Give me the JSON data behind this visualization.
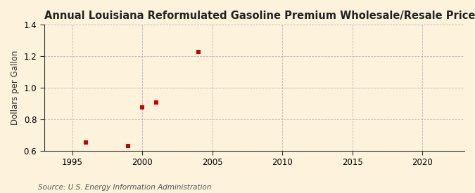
{
  "title": "Annual Louisiana Reformulated Gasoline Premium Wholesale/Resale Price by All Sellers",
  "ylabel": "Dollars per Gallon",
  "source": "Source: U.S. Energy Information Administration",
  "x_data": [
    1996,
    1999,
    2000,
    2001,
    2004
  ],
  "y_data": [
    0.652,
    0.628,
    0.874,
    0.905,
    1.228
  ],
  "marker_color": "#cc0000",
  "marker_style": "s",
  "marker_size": 4,
  "xlim": [
    1993,
    2023
  ],
  "ylim": [
    0.6,
    1.4
  ],
  "xticks": [
    1995,
    2000,
    2005,
    2010,
    2015,
    2020
  ],
  "yticks": [
    0.6,
    0.8,
    1.0,
    1.2,
    1.4
  ],
  "background_color": "#fdf3dc",
  "plot_bg_color": "#fdf3dc",
  "grid_color": "#aaaaaa",
  "spine_color": "#333333",
  "title_fontsize": 10.5,
  "label_fontsize": 8.5,
  "tick_fontsize": 8.5,
  "source_fontsize": 7.5
}
